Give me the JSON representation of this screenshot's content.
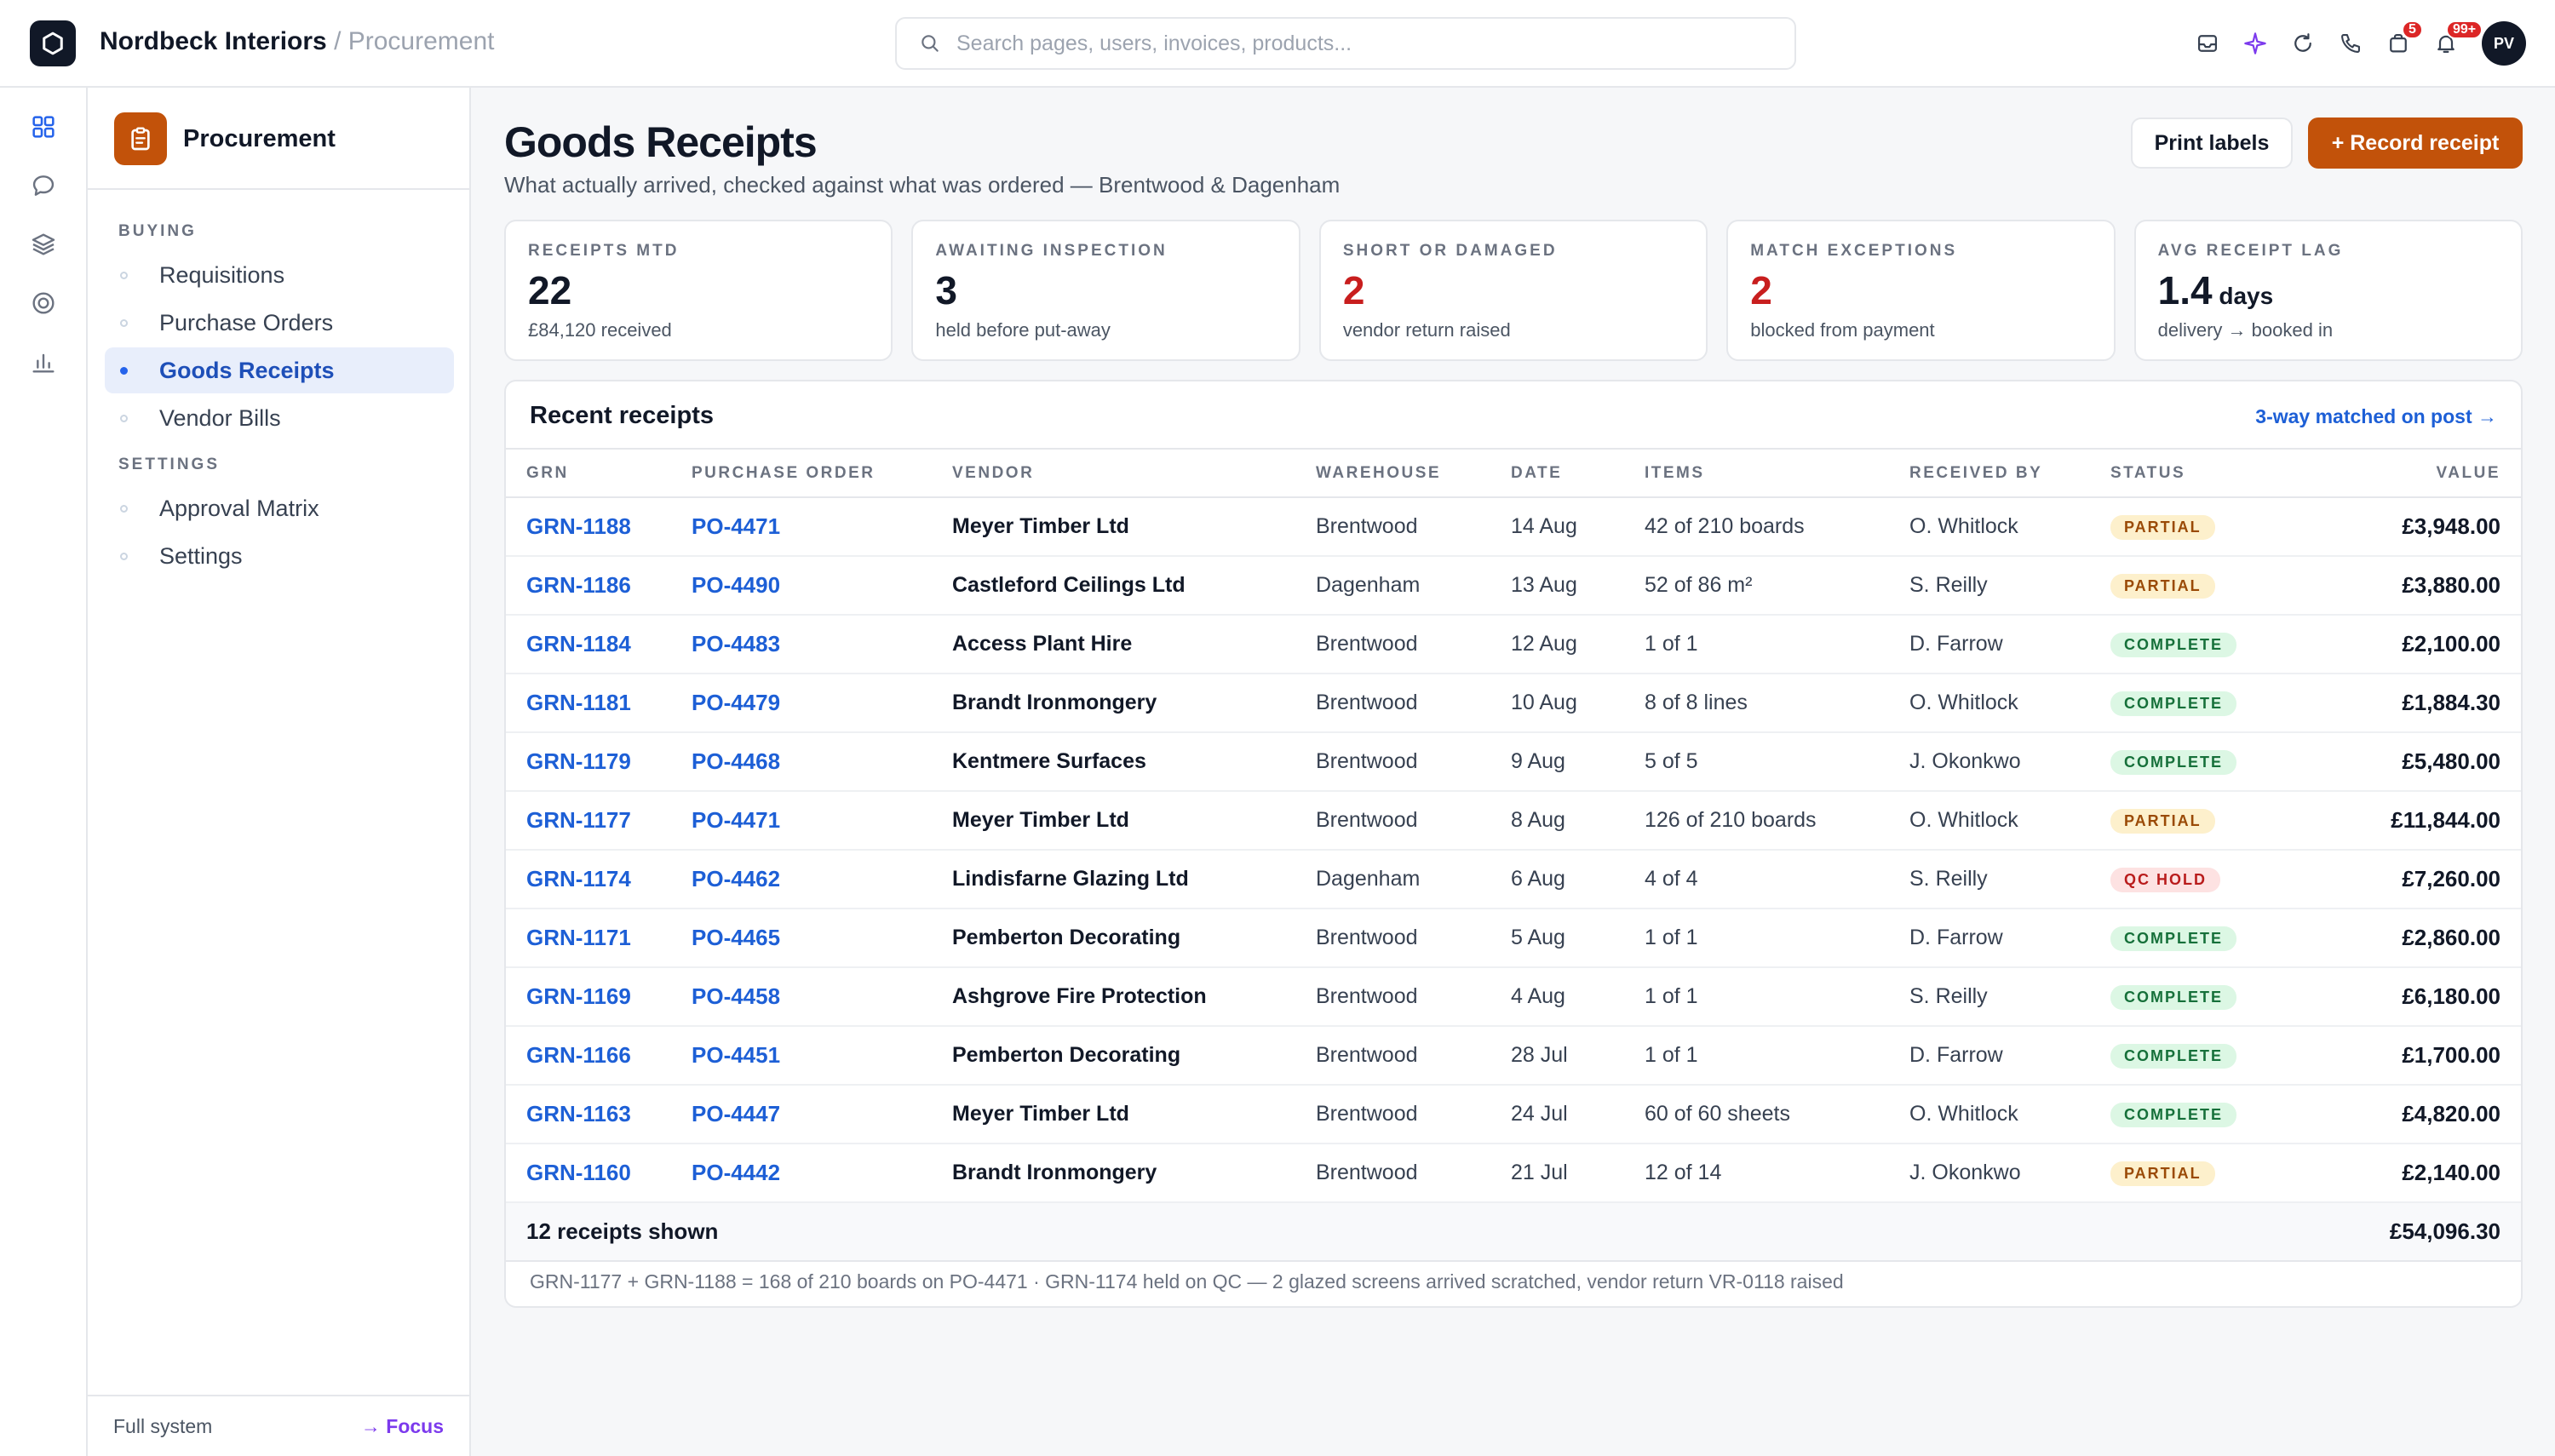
{
  "app": {
    "name": "Nordbeck Interiors",
    "crumb": " / Procurement"
  },
  "search": {
    "placeholder": "Search pages, users, invoices, products..."
  },
  "topbar": {
    "badge_orders": "5",
    "badge_notifications": "99+",
    "avatar_initials": "PV"
  },
  "sidebar": {
    "title": "Procurement",
    "section_buying": "BUYING",
    "section_settings": "SETTINGS",
    "items": [
      "Requisitions",
      "Purchase Orders",
      "Goods Receipts",
      "Vendor Bills",
      "Approval Matrix",
      "Settings"
    ],
    "footer_left": "Full system",
    "footer_right": "→ Focus"
  },
  "page": {
    "title": "Goods Receipts",
    "subtitle": "What actually arrived, checked against what was ordered — Brentwood & Dagenham",
    "print_label": "Print labels",
    "record_label": "+ Record receipt"
  },
  "kpis": [
    {
      "label": "RECEIPTS MTD",
      "value": "22",
      "unit": "",
      "sub": "£84,120 received"
    },
    {
      "label": "AWAITING INSPECTION",
      "value": "3",
      "unit": "",
      "sub": "held before put-away"
    },
    {
      "label": "SHORT OR DAMAGED",
      "value": "2",
      "unit": "",
      "sub": "vendor return raised"
    },
    {
      "label": "MATCH EXCEPTIONS",
      "value": "2",
      "unit": "",
      "sub": "blocked from payment"
    },
    {
      "label": "AVG RECEIPT LAG",
      "value": "1.4",
      "unit": " days",
      "sub": "delivery → booked in"
    }
  ],
  "table": {
    "title": "Recent receipts",
    "link": "3-way matched on post →",
    "columns": [
      "GRN",
      "PURCHASE ORDER",
      "VENDOR",
      "WAREHOUSE",
      "DATE",
      "ITEMS",
      "RECEIVED BY",
      "STATUS",
      "VALUE"
    ],
    "rows": [
      {
        "grn": "GRN-1188",
        "po": "PO-4471",
        "vendor": "Meyer Timber Ltd",
        "warehouse": "Brentwood",
        "date": "14 Aug",
        "items": "42 of 210 boards",
        "received_by": "O. Whitlock",
        "status": "PARTIAL",
        "value": "£3,948.00"
      },
      {
        "grn": "GRN-1186",
        "po": "PO-4490",
        "vendor": "Castleford Ceilings Ltd",
        "warehouse": "Dagenham",
        "date": "13 Aug",
        "items": "52 of 86 m²",
        "received_by": "S. Reilly",
        "status": "PARTIAL",
        "value": "£3,880.00"
      },
      {
        "grn": "GRN-1184",
        "po": "PO-4483",
        "vendor": "Access Plant Hire",
        "warehouse": "Brentwood",
        "date": "12 Aug",
        "items": "1 of 1",
        "received_by": "D. Farrow",
        "status": "COMPLETE",
        "value": "£2,100.00"
      },
      {
        "grn": "GRN-1181",
        "po": "PO-4479",
        "vendor": "Brandt Ironmongery",
        "warehouse": "Brentwood",
        "date": "10 Aug",
        "items": "8 of 8 lines",
        "received_by": "O. Whitlock",
        "status": "COMPLETE",
        "value": "£1,884.30"
      },
      {
        "grn": "GRN-1179",
        "po": "PO-4468",
        "vendor": "Kentmere Surfaces",
        "warehouse": "Brentwood",
        "date": "9 Aug",
        "items": "5 of 5",
        "received_by": "J. Okonkwo",
        "status": "COMPLETE",
        "value": "£5,480.00"
      },
      {
        "grn": "GRN-1177",
        "po": "PO-4471",
        "vendor": "Meyer Timber Ltd",
        "warehouse": "Brentwood",
        "date": "8 Aug",
        "items": "126 of 210 boards",
        "received_by": "O. Whitlock",
        "status": "PARTIAL",
        "value": "£11,844.00"
      },
      {
        "grn": "GRN-1174",
        "po": "PO-4462",
        "vendor": "Lindisfarne Glazing Ltd",
        "warehouse": "Dagenham",
        "date": "6 Aug",
        "items": "4 of 4",
        "received_by": "S. Reilly",
        "status": "QC HOLD",
        "value": "£7,260.00"
      },
      {
        "grn": "GRN-1171",
        "po": "PO-4465",
        "vendor": "Pemberton Decorating",
        "warehouse": "Brentwood",
        "date": "5 Aug",
        "items": "1 of 1",
        "received_by": "D. Farrow",
        "status": "COMPLETE",
        "value": "£2,860.00"
      },
      {
        "grn": "GRN-1169",
        "po": "PO-4458",
        "vendor": "Ashgrove Fire Protection",
        "warehouse": "Brentwood",
        "date": "4 Aug",
        "items": "1 of 1",
        "received_by": "S. Reilly",
        "status": "COMPLETE",
        "value": "£6,180.00"
      },
      {
        "grn": "GRN-1166",
        "po": "PO-4451",
        "vendor": "Pemberton Decorating",
        "warehouse": "Brentwood",
        "date": "28 Jul",
        "items": "1 of 1",
        "received_by": "D. Farrow",
        "status": "COMPLETE",
        "value": "£1,700.00"
      },
      {
        "grn": "GRN-1163",
        "po": "PO-4447",
        "vendor": "Meyer Timber Ltd",
        "warehouse": "Brentwood",
        "date": "24 Jul",
        "items": "60 of 60 sheets",
        "received_by": "O. Whitlock",
        "status": "COMPLETE",
        "value": "£4,820.00"
      },
      {
        "grn": "GRN-1160",
        "po": "PO-4442",
        "vendor": "Brandt Ironmongery",
        "warehouse": "Brentwood",
        "date": "21 Jul",
        "items": "12 of 14",
        "received_by": "J. Okonkwo",
        "status": "PARTIAL",
        "value": "£2,140.00"
      }
    ],
    "total_label": "12 receipts shown",
    "total_value": "£54,096.30",
    "footnote": "GRN-1177 + GRN-1188 = 168 of 210 boards on PO-4471 · GRN-1174 held on QC — 2 glazed screens arrived scratched, vendor return VR-0118 raised"
  },
  "colors": {
    "accent": "#c2520a",
    "link": "#1d5fd6",
    "danger": "#c81e1e"
  }
}
